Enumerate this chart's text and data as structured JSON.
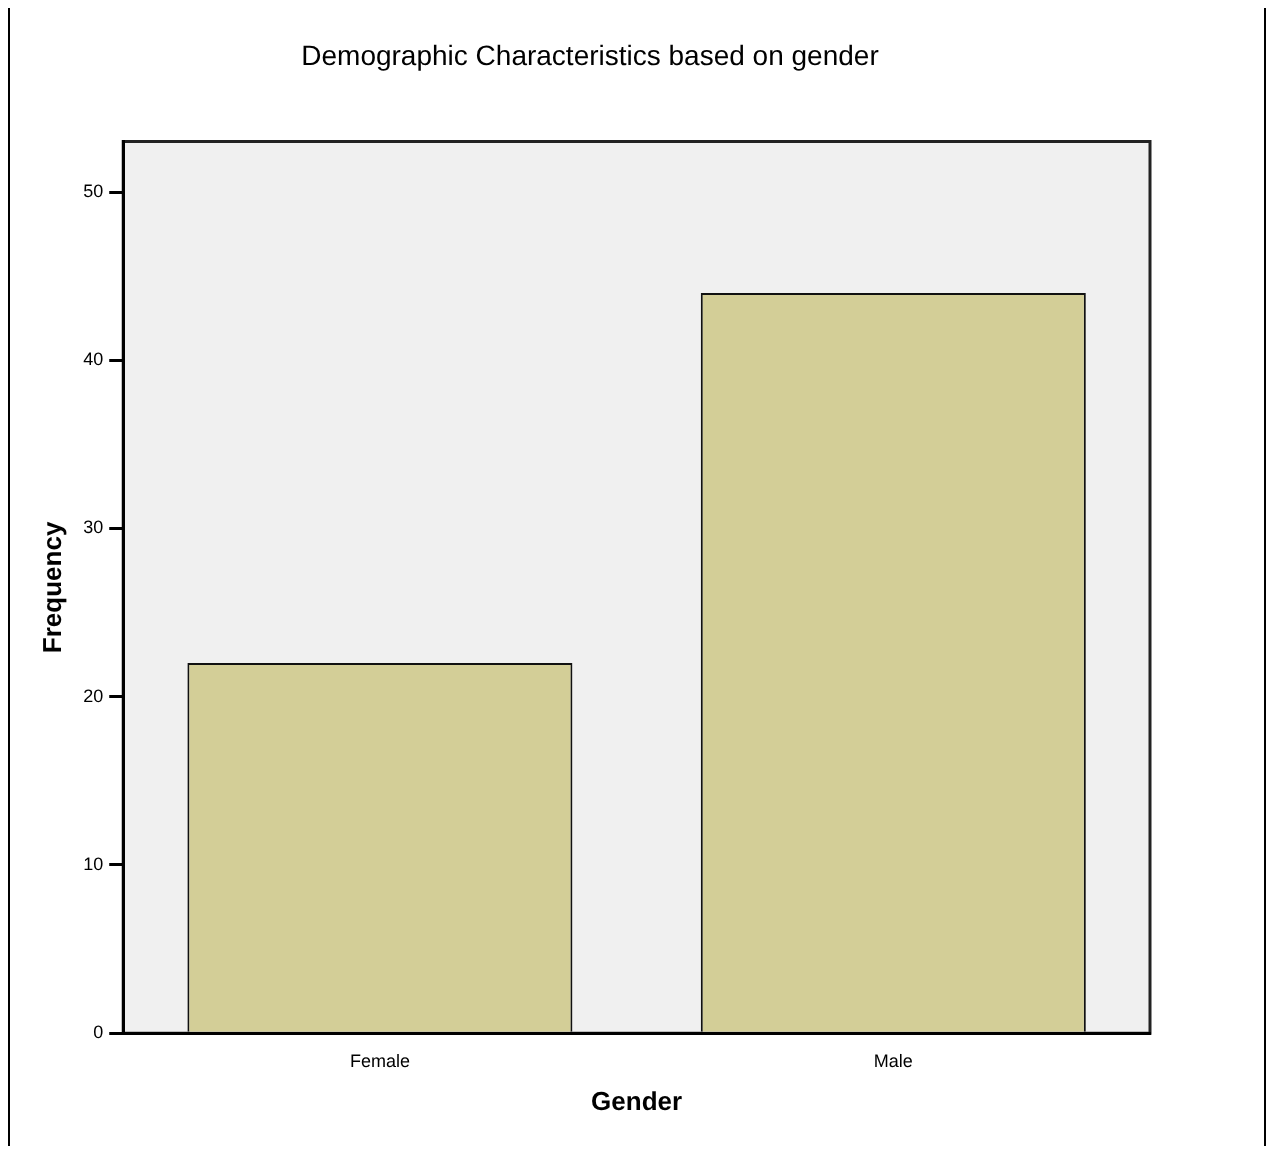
{
  "chart_data": {
    "type": "bar",
    "title": "Demographic Characteristics based on gender",
    "xlabel": "Gender",
    "ylabel": "Frequency",
    "categories": [
      "Female",
      "Male"
    ],
    "values": [
      22,
      44
    ],
    "color": "#d3ce97",
    "ylim": [
      0,
      53
    ],
    "yticks": [
      0,
      10,
      20,
      30,
      40,
      50
    ],
    "grid": false,
    "legend": false
  }
}
